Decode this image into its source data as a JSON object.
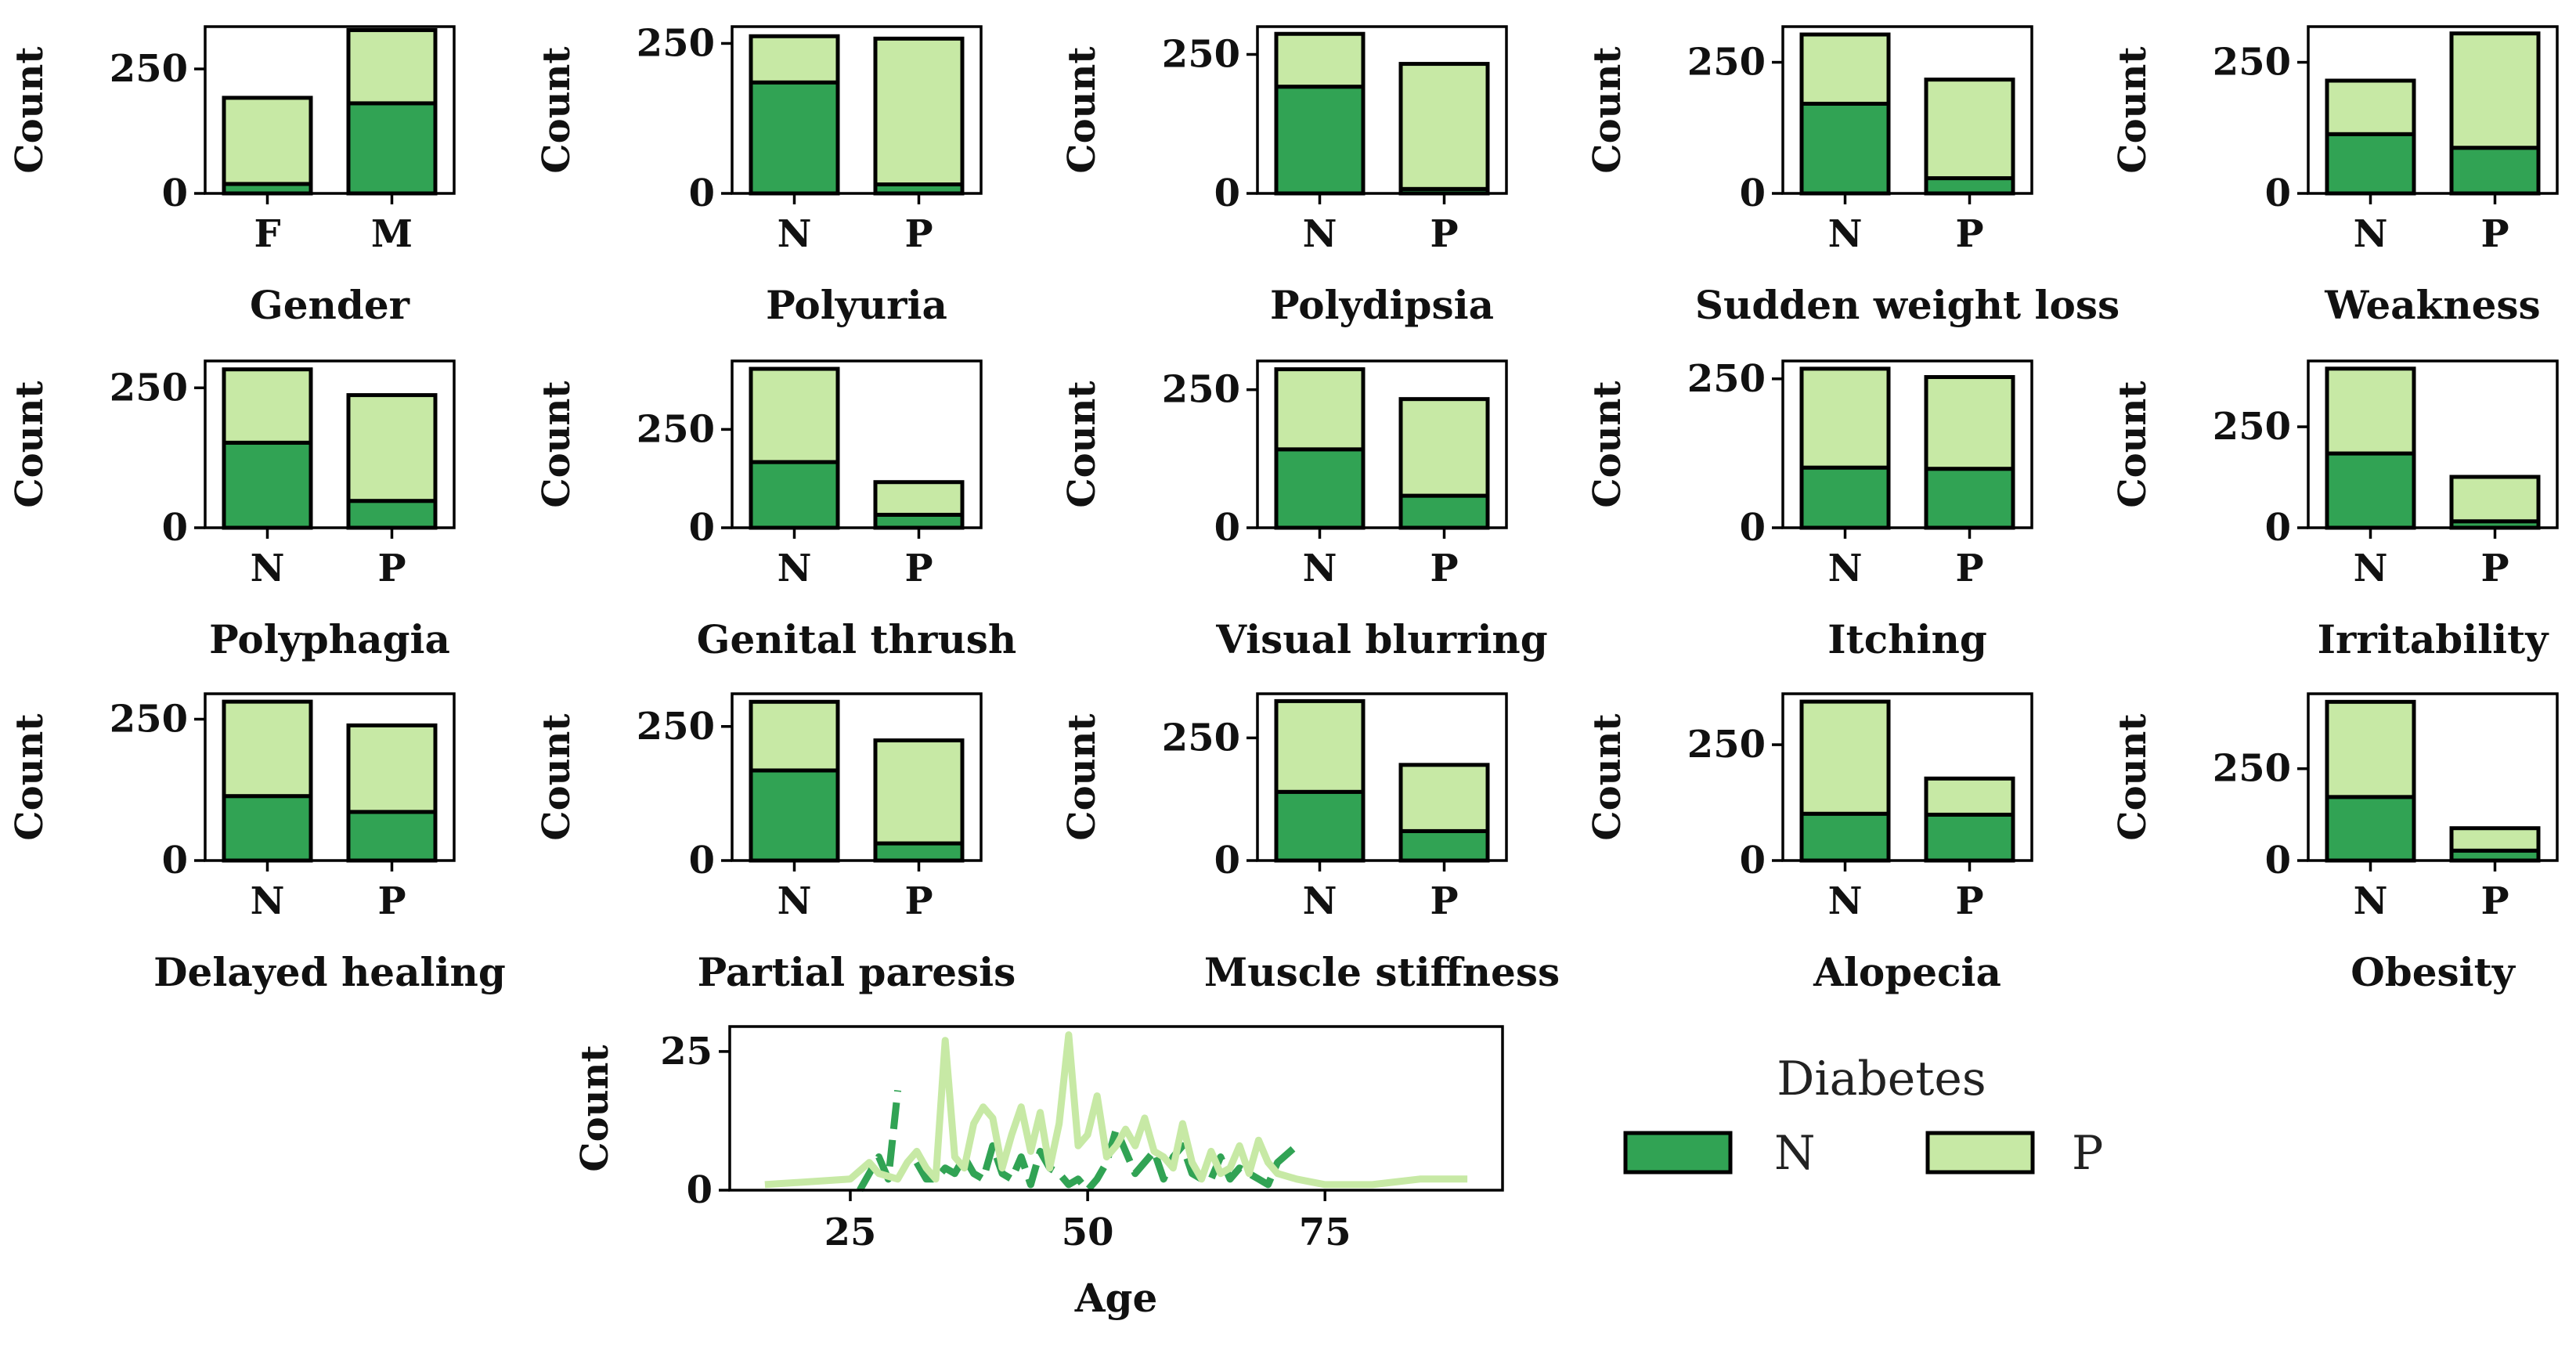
{
  "colors": {
    "N": "#31a354",
    "P": "#c7e9a5",
    "edge": "#000000"
  },
  "legend": {
    "title": "Diabetes",
    "items": [
      {
        "key": "N",
        "label": "N",
        "color": "#31a354"
      },
      {
        "key": "P",
        "label": "P",
        "color": "#c7e9a5"
      }
    ]
  },
  "chart_data": [
    {
      "type": "bar",
      "stacked": true,
      "xlabel": "Gender",
      "ylabel": "Count",
      "categories": [
        "F",
        "M"
      ],
      "series": [
        {
          "name": "N",
          "values": [
            19,
            181
          ]
        },
        {
          "name": "P",
          "values": [
            173,
            147
          ]
        }
      ],
      "ylim": [
        0,
        335
      ],
      "yticks": [
        0,
        250
      ]
    },
    {
      "type": "bar",
      "stacked": true,
      "xlabel": "Polyuria",
      "ylabel": "Count",
      "categories": [
        "N",
        "P"
      ],
      "series": [
        {
          "name": "N",
          "values": [
            185,
            15
          ]
        },
        {
          "name": "P",
          "values": [
            77,
            243
          ]
        }
      ],
      "ylim": [
        0,
        278
      ],
      "yticks": [
        0,
        250
      ]
    },
    {
      "type": "bar",
      "stacked": true,
      "xlabel": "Polydipsia",
      "ylabel": "Count",
      "categories": [
        "N",
        "P"
      ],
      "series": [
        {
          "name": "N",
          "values": [
            192,
            8
          ]
        },
        {
          "name": "P",
          "values": [
            95,
            225
          ]
        }
      ],
      "ylim": [
        0,
        300
      ],
      "yticks": [
        0,
        250
      ]
    },
    {
      "type": "bar",
      "stacked": true,
      "xlabel": "Sudden weight loss",
      "ylabel": "Count",
      "categories": [
        "N",
        "P"
      ],
      "series": [
        {
          "name": "N",
          "values": [
            171,
            29
          ]
        },
        {
          "name": "P",
          "values": [
            132,
            188
          ]
        }
      ],
      "ylim": [
        0,
        318
      ],
      "yticks": [
        0,
        250
      ]
    },
    {
      "type": "bar",
      "stacked": true,
      "xlabel": "Weakness",
      "ylabel": "Count",
      "categories": [
        "N",
        "P"
      ],
      "series": [
        {
          "name": "N",
          "values": [
            113,
            87
          ]
        },
        {
          "name": "P",
          "values": [
            102,
            218
          ]
        }
      ],
      "ylim": [
        0,
        318
      ],
      "yticks": [
        0,
        250
      ]
    },
    {
      "type": "bar",
      "stacked": true,
      "xlabel": "Polyphagia",
      "ylabel": "Count",
      "categories": [
        "N",
        "P"
      ],
      "series": [
        {
          "name": "N",
          "values": [
            152,
            48
          ]
        },
        {
          "name": "P",
          "values": [
            131,
            189
          ]
        }
      ],
      "ylim": [
        0,
        298
      ],
      "yticks": [
        0,
        250
      ]
    },
    {
      "type": "bar",
      "stacked": true,
      "xlabel": "Genital thrush",
      "ylabel": "Count",
      "categories": [
        "N",
        "P"
      ],
      "series": [
        {
          "name": "N",
          "values": [
            167,
            33
          ]
        },
        {
          "name": "P",
          "values": [
            237,
            83
          ]
        }
      ],
      "ylim": [
        0,
        424
      ],
      "yticks": [
        0,
        250
      ]
    },
    {
      "type": "bar",
      "stacked": true,
      "xlabel": "Visual blurring",
      "ylabel": "Count",
      "categories": [
        "N",
        "P"
      ],
      "series": [
        {
          "name": "N",
          "values": [
            142,
            58
          ]
        },
        {
          "name": "P",
          "values": [
            145,
            175
          ]
        }
      ],
      "ylim": [
        0,
        302
      ],
      "yticks": [
        0,
        250
      ]
    },
    {
      "type": "bar",
      "stacked": true,
      "xlabel": "Itching",
      "ylabel": "Count",
      "categories": [
        "N",
        "P"
      ],
      "series": [
        {
          "name": "N",
          "values": [
            101,
            99
          ]
        },
        {
          "name": "P",
          "values": [
            166,
            154
          ]
        }
      ],
      "ylim": [
        0,
        280
      ],
      "yticks": [
        0,
        250
      ]
    },
    {
      "type": "bar",
      "stacked": true,
      "xlabel": "Irritability",
      "ylabel": "Count",
      "categories": [
        "N",
        "P"
      ],
      "series": [
        {
          "name": "N",
          "values": [
            184,
            16
          ]
        },
        {
          "name": "P",
          "values": [
            210,
            110
          ]
        }
      ],
      "ylim": [
        0,
        413
      ],
      "yticks": [
        0,
        250
      ]
    },
    {
      "type": "bar",
      "stacked": true,
      "xlabel": "Delayed healing",
      "ylabel": "Count",
      "categories": [
        "N",
        "P"
      ],
      "series": [
        {
          "name": "N",
          "values": [
            114,
            86
          ]
        },
        {
          "name": "P",
          "values": [
            167,
            153
          ]
        }
      ],
      "ylim": [
        0,
        295
      ],
      "yticks": [
        0,
        250
      ]
    },
    {
      "type": "bar",
      "stacked": true,
      "xlabel": "Partial paresis",
      "ylabel": "Count",
      "categories": [
        "N",
        "P"
      ],
      "series": [
        {
          "name": "N",
          "values": [
            168,
            32
          ]
        },
        {
          "name": "P",
          "values": [
            128,
            192
          ]
        }
      ],
      "ylim": [
        0,
        311
      ],
      "yticks": [
        0,
        250
      ]
    },
    {
      "type": "bar",
      "stacked": true,
      "xlabel": "Muscle stiffness",
      "ylabel": "Count",
      "categories": [
        "N",
        "P"
      ],
      "series": [
        {
          "name": "N",
          "values": [
            140,
            60
          ]
        },
        {
          "name": "P",
          "values": [
            185,
            135
          ]
        }
      ],
      "ylim": [
        0,
        340
      ],
      "yticks": [
        0,
        250
      ]
    },
    {
      "type": "bar",
      "stacked": true,
      "xlabel": "Alopecia",
      "ylabel": "Count",
      "categories": [
        "N",
        "P"
      ],
      "series": [
        {
          "name": "N",
          "values": [
            101,
            99
          ]
        },
        {
          "name": "P",
          "values": [
            242,
            78
          ]
        }
      ],
      "ylim": [
        0,
        360
      ],
      "yticks": [
        0,
        250
      ]
    },
    {
      "type": "bar",
      "stacked": true,
      "xlabel": "Obesity",
      "ylabel": "Count",
      "categories": [
        "N",
        "P"
      ],
      "series": [
        {
          "name": "N",
          "values": [
            173,
            27
          ]
        },
        {
          "name": "P",
          "values": [
            259,
            61
          ]
        }
      ],
      "ylim": [
        0,
        454
      ],
      "yticks": [
        0,
        250
      ]
    },
    {
      "type": "line",
      "xlabel": "Age",
      "ylabel": "Count",
      "xlim": [
        12.3,
        93.7
      ],
      "ylim": [
        0,
        29.5
      ],
      "xticks": [
        25,
        50,
        75
      ],
      "yticks": [
        0,
        25
      ],
      "series": [
        {
          "name": "N",
          "style": "dashed",
          "points": [
            [
              26,
              0
            ],
            [
              27,
              3
            ],
            [
              28,
              6
            ],
            [
              29,
              2
            ],
            [
              30,
              18
            ],
            [
              null,
              null
            ],
            [
              32,
              5
            ],
            [
              33,
              2
            ],
            [
              34,
              2
            ],
            [
              35,
              4
            ],
            [
              36,
              3
            ],
            [
              37,
              6
            ],
            [
              38,
              3
            ],
            [
              39,
              2
            ],
            [
              40,
              8
            ],
            [
              41,
              3
            ],
            [
              42,
              2
            ],
            [
              43,
              6
            ],
            [
              44,
              1
            ],
            [
              45,
              7
            ],
            [
              46,
              4
            ],
            [
              47,
              3
            ],
            [
              48,
              1
            ],
            [
              49,
              2
            ],
            [
              50,
              0
            ],
            [
              51,
              2
            ],
            [
              52,
              5
            ],
            [
              53,
              11
            ],
            [
              54,
              7
            ],
            [
              55,
              3
            ],
            [
              56,
              5
            ],
            [
              57,
              7
            ],
            [
              58,
              2
            ],
            [
              59,
              6
            ],
            [
              60,
              8
            ],
            [
              61,
              3
            ],
            [
              62,
              2
            ],
            [
              63,
              2
            ],
            [
              64,
              6
            ],
            [
              65,
              2
            ],
            [
              66,
              4
            ],
            [
              67,
              3
            ],
            [
              68,
              2
            ],
            [
              69,
              1
            ],
            [
              70,
              5
            ],
            [
              72,
              8
            ]
          ]
        },
        {
          "name": "P",
          "style": "solid",
          "points": [
            [
              16,
              1
            ],
            [
              25,
              2
            ],
            [
              27,
              5
            ],
            [
              28,
              3
            ],
            [
              30,
              2
            ],
            [
              31,
              5
            ],
            [
              32,
              7
            ],
            [
              33,
              4
            ],
            [
              34,
              2
            ],
            [
              35,
              27
            ],
            [
              36,
              6
            ],
            [
              37,
              4
            ],
            [
              38,
              12
            ],
            [
              39,
              15
            ],
            [
              40,
              13
            ],
            [
              41,
              4
            ],
            [
              42,
              10
            ],
            [
              43,
              15
            ],
            [
              44,
              7
            ],
            [
              45,
              14
            ],
            [
              46,
              4
            ],
            [
              47,
              12
            ],
            [
              48,
              28
            ],
            [
              49,
              8
            ],
            [
              50,
              10
            ],
            [
              51,
              17
            ],
            [
              52,
              6
            ],
            [
              53,
              8
            ],
            [
              54,
              11
            ],
            [
              55,
              8
            ],
            [
              56,
              13
            ],
            [
              57,
              7
            ],
            [
              58,
              6
            ],
            [
              59,
              4
            ],
            [
              60,
              12
            ],
            [
              61,
              5
            ],
            [
              62,
              2
            ],
            [
              63,
              7
            ],
            [
              64,
              3
            ],
            [
              65,
              4
            ],
            [
              66,
              8
            ],
            [
              67,
              3
            ],
            [
              68,
              9
            ],
            [
              69,
              5
            ],
            [
              70,
              3
            ],
            [
              72,
              2
            ],
            [
              75,
              1
            ],
            [
              80,
              1
            ],
            [
              85,
              2
            ],
            [
              90,
              2
            ]
          ]
        }
      ]
    }
  ]
}
